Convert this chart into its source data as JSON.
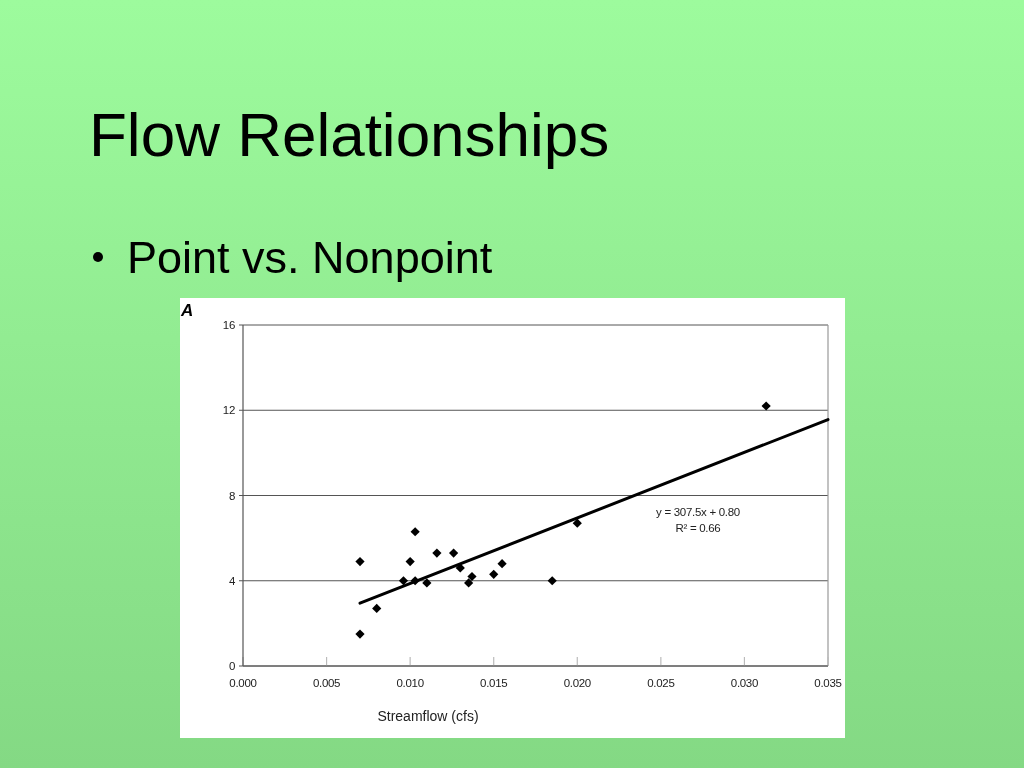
{
  "chart_data": {
    "type": "scatter",
    "title": "Flow Relationships",
    "subtitle": "Point vs. Nonpoint",
    "xlabel": "Streamflow (cfs)",
    "annotations": [
      "A",
      "y = 307.5x + 0.80",
      "R² = 0.66"
    ],
    "xlim": [
      0,
      0.035
    ],
    "xticks": [
      {
        "value": 0,
        "label": "0.000"
      },
      {
        "value": 0.005,
        "label": "0.005"
      },
      {
        "value": 0.01,
        "label": "0.010"
      },
      {
        "value": 0.015,
        "label": "0.015"
      },
      {
        "value": 0.02,
        "label": "0.020"
      },
      {
        "value": 0.025,
        "label": "0.025"
      },
      {
        "value": 0.03,
        "label": "0.030"
      },
      {
        "value": 0.035,
        "label": "0.035"
      }
    ],
    "ylim": [
      0,
      16
    ],
    "yticks": [
      0,
      4,
      8,
      12,
      16
    ],
    "grid": "y",
    "series": [
      {
        "color": "#000000",
        "marker": "diamond",
        "x": [
          0.007,
          0.007,
          0.008,
          0.0096,
          0.01,
          0.0103,
          0.0103,
          0.011,
          0.0116,
          0.0126,
          0.013,
          0.0135,
          0.0137,
          0.015,
          0.0155,
          0.0185,
          0.02,
          0.0313
        ],
        "values": [
          4.9,
          1.5,
          2.7,
          4.0,
          4.9,
          6.3,
          4.0,
          3.9,
          5.3,
          5.3,
          4.6,
          3.9,
          4.2,
          4.3,
          4.8,
          4.0,
          6.7,
          12.2
        ]
      },
      {
        "type": "line",
        "color": "#000000",
        "line_style": "solid",
        "x": [
          0.007,
          0.035
        ],
        "values": [
          2.95,
          11.56
        ]
      }
    ]
  }
}
